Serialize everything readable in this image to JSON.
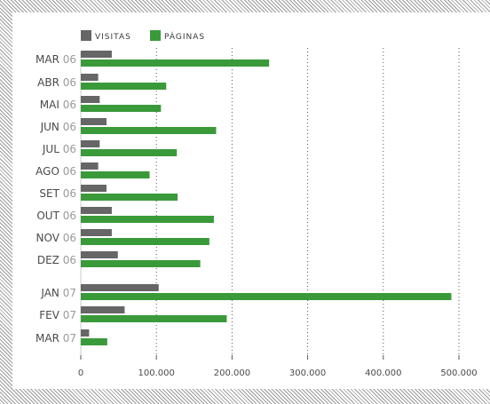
{
  "chart_data": {
    "type": "bar",
    "orientation": "horizontal",
    "categories": [
      {
        "month": "MAR",
        "year": "06"
      },
      {
        "month": "ABR",
        "year": "06"
      },
      {
        "month": "MAI",
        "year": "06"
      },
      {
        "month": "JUN",
        "year": "06"
      },
      {
        "month": "JUL",
        "year": "06"
      },
      {
        "month": "AGO",
        "year": "06"
      },
      {
        "month": "SET",
        "year": "06"
      },
      {
        "month": "OUT",
        "year": "06"
      },
      {
        "month": "NOV",
        "year": "06"
      },
      {
        "month": "DEZ",
        "year": "06"
      },
      {
        "month": "JAN",
        "year": "07"
      },
      {
        "month": "FEV",
        "year": "07"
      },
      {
        "month": "MAR",
        "year": "07"
      }
    ],
    "series": [
      {
        "name": "VISITAS",
        "color": "#666666",
        "values": [
          41000,
          23000,
          25000,
          34000,
          25000,
          23000,
          34000,
          41000,
          41000,
          49000,
          103000,
          58000,
          11000
        ]
      },
      {
        "name": "PÁGINAS",
        "color": "#3a9a3a",
        "values": [
          249000,
          113000,
          106000,
          179000,
          127000,
          91000,
          128000,
          176000,
          170000,
          158000,
          490000,
          193000,
          35000
        ]
      }
    ],
    "xlim": [
      0,
      500000
    ],
    "x_ticks": [
      "0",
      "100.000",
      "200.000",
      "300.000",
      "400.000",
      "500.000"
    ],
    "grid": "vertical-dotted",
    "legend": "top-left"
  }
}
